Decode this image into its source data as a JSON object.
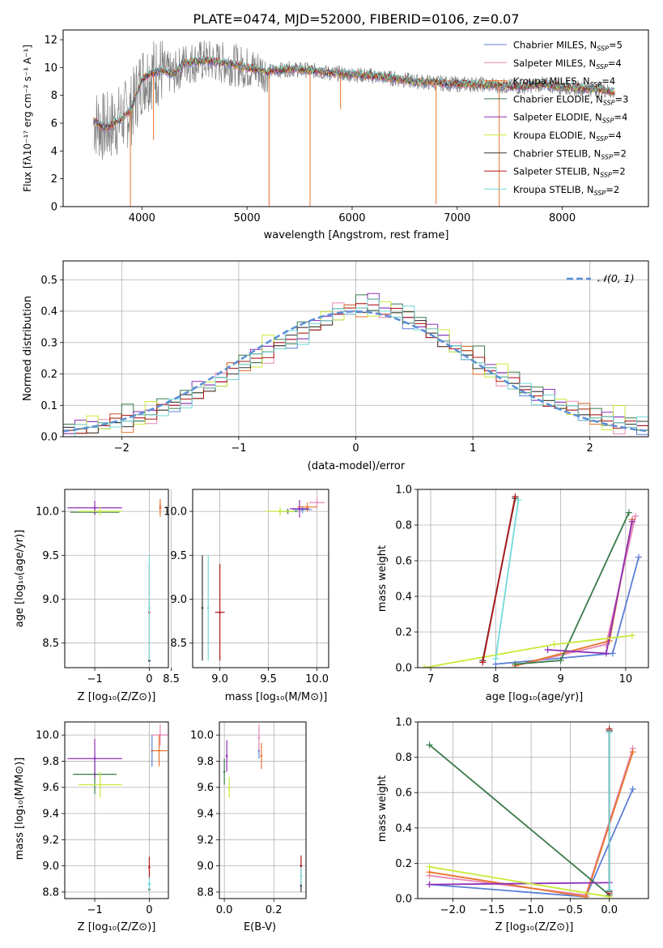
{
  "title": "PLATE=0474, MJD=52000, FIBERID=0106, z=0.07",
  "colors": {
    "chabrier_miles": "#5b7fd6",
    "salpeter_miles": "#e887b8",
    "kroupa_miles": "#e8742a",
    "chabrier_elodie": "#3a7a4a",
    "salpeter_elodie": "#8f2fb8",
    "kroupa_elodie": "#c8ea3a",
    "chabrier_stelib": "#333333",
    "salpeter_stelib": "#b01818",
    "kroupa_stelib": "#72d9d9",
    "data": "#808080",
    "normal_curve": "#5b8fd6"
  },
  "chart_data": [
    {
      "id": "spectrum",
      "type": "line",
      "xlabel": "wavelength [Angstrom, rest frame]",
      "ylabel": "Flux [fλ10⁻¹⁷ erg cm⁻² s⁻¹ A⁻¹]",
      "xlim": [
        3250,
        8820
      ],
      "ylim": [
        0,
        12.7
      ],
      "xticks": [
        "4000",
        "5000",
        "6000",
        "7000",
        "8000"
      ],
      "yticks": [
        "0",
        "2",
        "4",
        "6",
        "8",
        "10",
        "12"
      ],
      "legend_placement": "upper-right",
      "legend": [
        {
          "label": "Chabrier MILES, N",
          "sub": "SSP",
          "suffix": "=5",
          "color_key": "chabrier_miles"
        },
        {
          "label": "Salpeter MILES, N",
          "sub": "SSP",
          "suffix": "=4",
          "color_key": "salpeter_miles"
        },
        {
          "label": "Kroupa MILES, N",
          "sub": "SSP",
          "suffix": "=4",
          "color_key": "kroupa_miles"
        },
        {
          "label": "Chabrier ELODIE, N",
          "sub": "SSP",
          "suffix": "=3",
          "color_key": "chabrier_elodie"
        },
        {
          "label": "Salpeter ELODIE, N",
          "sub": "SSP",
          "suffix": "=4",
          "color_key": "salpeter_elodie"
        },
        {
          "label": "Kroupa ELODIE, N",
          "sub": "SSP",
          "suffix": "=4",
          "color_key": "kroupa_elodie"
        },
        {
          "label": "Chabrier STELIB, N",
          "sub": "SSP",
          "suffix": "=2",
          "color_key": "chabrier_stelib"
        },
        {
          "label": "Salpeter STELIB, N",
          "sub": "SSP",
          "suffix": "=2",
          "color_key": "salpeter_stelib"
        },
        {
          "label": "Kroupa STELIB, N",
          "sub": "SSP",
          "suffix": "=2",
          "color_key": "kroupa_stelib"
        }
      ],
      "continuum_points": [
        [
          3550,
          6.1
        ],
        [
          3650,
          5.6
        ],
        [
          3800,
          6.3
        ],
        [
          3900,
          7.0
        ],
        [
          4000,
          9.2
        ],
        [
          4100,
          9.6
        ],
        [
          4200,
          9.8
        ],
        [
          4300,
          9.5
        ],
        [
          4400,
          10.3
        ],
        [
          4600,
          10.5
        ],
        [
          4800,
          10.3
        ],
        [
          5000,
          10.0
        ],
        [
          5200,
          9.7
        ],
        [
          5400,
          9.9
        ],
        [
          5600,
          9.8
        ],
        [
          5800,
          9.6
        ],
        [
          6000,
          9.5
        ],
        [
          6200,
          9.4
        ],
        [
          6400,
          9.2
        ],
        [
          6600,
          9.0
        ],
        [
          6800,
          8.9
        ],
        [
          7000,
          8.8
        ],
        [
          7200,
          8.8
        ],
        [
          7400,
          8.7
        ],
        [
          7600,
          8.6
        ],
        [
          7800,
          8.8
        ],
        [
          8000,
          8.6
        ],
        [
          8200,
          8.5
        ],
        [
          8400,
          8.4
        ],
        [
          8500,
          8.2
        ]
      ],
      "absorption_spikes": [
        [
          3890,
          0
        ],
        [
          4110,
          4.8
        ],
        [
          5210,
          0
        ],
        [
          5600,
          0
        ],
        [
          5890,
          7.0
        ],
        [
          6800,
          0.2
        ],
        [
          7400,
          0
        ]
      ]
    },
    {
      "id": "residuals",
      "type": "histogram",
      "xlabel": "(data-model)/error",
      "ylabel": "Normed distribution",
      "xlim": [
        -2.5,
        2.5
      ],
      "ylim": [
        0,
        0.56
      ],
      "xticks": [
        "−2",
        "−1",
        "0",
        "1",
        "2"
      ],
      "yticks": [
        "0.0",
        "0.1",
        "0.2",
        "0.3",
        "0.4",
        "0.5"
      ],
      "grid": true,
      "legend_placement": "upper-right",
      "legend": [
        "𝒩(0, 1)"
      ],
      "bin_width": 0.1,
      "bin_start": -2.5,
      "base_values": [
        0.02,
        0.025,
        0.03,
        0.035,
        0.045,
        0.05,
        0.06,
        0.07,
        0.085,
        0.1,
        0.12,
        0.14,
        0.155,
        0.175,
        0.2,
        0.23,
        0.25,
        0.27,
        0.29,
        0.31,
        0.33,
        0.35,
        0.37,
        0.39,
        0.4,
        0.41,
        0.42,
        0.4,
        0.395,
        0.38,
        0.36,
        0.33,
        0.305,
        0.28,
        0.26,
        0.235,
        0.21,
        0.19,
        0.17,
        0.15,
        0.13,
        0.115,
        0.1,
        0.085,
        0.07,
        0.06,
        0.05,
        0.045,
        0.04,
        0.035
      ],
      "series_offsets": {
        "chabrier_miles": [
          -0.01,
          0.0,
          0.01,
          -0.01,
          0.02,
          0.0,
          -0.01,
          0.01,
          0.0,
          -0.02
        ],
        "salpeter_miles": [
          0.01,
          -0.01,
          0.0,
          0.02,
          -0.01,
          0.01,
          0.0,
          -0.02,
          0.01,
          0.0
        ],
        "kroupa_miles": [
          0.0,
          0.01,
          -0.01,
          0.0,
          0.02,
          -0.02,
          0.01,
          0.0,
          -0.01,
          0.01
        ],
        "chabrier_elodie": [
          0.02,
          -0.01,
          0.0,
          0.01,
          0.0,
          0.03,
          -0.01,
          0.0,
          0.02,
          -0.01
        ],
        "salpeter_elodie": [
          -0.01,
          0.02,
          0.01,
          0.0,
          -0.01,
          0.0,
          0.02,
          0.01,
          0.0,
          0.0
        ],
        "kroupa_elodie": [
          0.0,
          0.0,
          0.02,
          -0.01,
          0.01,
          0.0,
          -0.02,
          0.03,
          0.0,
          0.01
        ],
        "chabrier_stelib": [
          0.01,
          0.0,
          -0.01,
          0.01,
          0.0,
          -0.01,
          0.01,
          0.0,
          0.0,
          0.01
        ],
        "salpeter_stelib": [
          0.0,
          -0.01,
          0.0,
          0.0,
          0.01,
          0.01,
          0.0,
          -0.01,
          0.01,
          0.0
        ],
        "kroupa_stelib": [
          -0.02,
          0.01,
          0.0,
          0.01,
          -0.01,
          0.0,
          0.01,
          0.0,
          -0.01,
          0.02
        ]
      },
      "normal_curve": {
        "mean": 0,
        "sigma": 1
      }
    },
    {
      "id": "age-vs-Z",
      "type": "scatter",
      "xlabel": "Z [log₁₀(Z/Z⊙)]",
      "ylabel": "age  [log₁₀(age/yr)]",
      "xlim": [
        -1.55,
        0.35
      ],
      "ylim": [
        8.22,
        10.25
      ],
      "xticks": [
        "−1",
        "0"
      ],
      "yticks": [
        "8.5",
        "9.0",
        "9.5",
        "10.0"
      ],
      "grid": true,
      "points": [
        {
          "series": "chabrier_miles",
          "x": 0.0,
          "y": 8.3,
          "xerr": 0.02,
          "yerr": 0.0
        },
        {
          "series": "salpeter_miles",
          "x": 0.2,
          "y": 10.06,
          "xerr": 0.02,
          "yerr": 0.08
        },
        {
          "series": "kroupa_miles",
          "x": 0.2,
          "y": 10.04,
          "xerr": 0.02,
          "yerr": 0.1
        },
        {
          "series": "chabrier_elodie",
          "x": -1.0,
          "y": 9.99,
          "xerr": 0.45,
          "yerr": 0.03
        },
        {
          "series": "salpeter_elodie",
          "x": -1.0,
          "y": 10.04,
          "xerr": 0.5,
          "yerr": 0.08
        },
        {
          "series": "kroupa_elodie",
          "x": -0.9,
          "y": 10.0,
          "xerr": 0.4,
          "yerr": 0.05
        },
        {
          "series": "chabrier_stelib",
          "x": 0.0,
          "y": 8.3,
          "xerr": 0.0,
          "yerr": 0.0
        },
        {
          "series": "salpeter_stelib",
          "x": 0.0,
          "y": 8.85,
          "xerr": 0.0,
          "yerr": 0.55
        },
        {
          "series": "kroupa_stelib",
          "x": 0.0,
          "y": 8.9,
          "xerr": 0.0,
          "yerr": 0.6
        }
      ]
    },
    {
      "id": "age-vs-mass",
      "type": "scatter",
      "xlabel": "mass [log₁₀(M/M⊙)]",
      "ylabel": "",
      "xlim": [
        8.72,
        10.12
      ],
      "ylim": [
        8.22,
        10.25
      ],
      "xticks": [
        "8.5",
        "9.0",
        "9.5",
        "10.0"
      ],
      "yticks": [
        "8.5",
        "9.0",
        "9.5",
        "10.0"
      ],
      "grid": true,
      "points": [
        {
          "series": "chabrier_miles",
          "x": 9.85,
          "y": 10.02,
          "xerr": 0.1,
          "yerr": 0.04
        },
        {
          "series": "salpeter_miles",
          "x": 10.0,
          "y": 10.1,
          "xerr": 0.08,
          "yerr": 0.06
        },
        {
          "series": "kroupa_miles",
          "x": 9.9,
          "y": 10.05,
          "xerr": 0.1,
          "yerr": 0.05
        },
        {
          "series": "chabrier_elodie",
          "x": 9.7,
          "y": 10.0,
          "xerr": 0.1,
          "yerr": 0.03
        },
        {
          "series": "salpeter_elodie",
          "x": 9.82,
          "y": 10.03,
          "xerr": 0.1,
          "yerr": 0.1
        },
        {
          "series": "kroupa_elodie",
          "x": 9.62,
          "y": 10.0,
          "xerr": 0.15,
          "yerr": 0.05
        },
        {
          "series": "chabrier_stelib",
          "x": 8.82,
          "y": 8.9,
          "xerr": 0.0,
          "yerr": 0.6
        },
        {
          "series": "salpeter_stelib",
          "x": 9.0,
          "y": 8.85,
          "xerr": 0.05,
          "yerr": 0.55
        },
        {
          "series": "kroupa_stelib",
          "x": 8.88,
          "y": 8.9,
          "xerr": 0.0,
          "yerr": 0.6
        }
      ]
    },
    {
      "id": "weight-vs-age",
      "type": "line",
      "xlabel": "age  [log₁₀(age/yr)]",
      "ylabel": "mass weight",
      "xlim": [
        6.8,
        10.35
      ],
      "ylim": [
        0,
        1.0
      ],
      "xticks": [
        "7",
        "8",
        "9",
        "10"
      ],
      "yticks": [
        "0.0",
        "0.2",
        "0.4",
        "0.6",
        "0.8",
        "1.0"
      ],
      "grid": true,
      "series": [
        {
          "name_key": "chabrier_miles",
          "x": [
            8.0,
            9.8,
            10.2
          ],
          "y": [
            0.02,
            0.08,
            0.62
          ]
        },
        {
          "name_key": "salpeter_miles",
          "x": [
            8.3,
            9.7,
            10.15
          ],
          "y": [
            0.01,
            0.13,
            0.85
          ]
        },
        {
          "name_key": "kroupa_miles",
          "x": [
            8.3,
            9.75,
            10.1
          ],
          "y": [
            0.01,
            0.15,
            0.83
          ]
        },
        {
          "name_key": "chabrier_elodie",
          "x": [
            8.3,
            9.0,
            10.05
          ],
          "y": [
            0.02,
            0.04,
            0.87
          ]
        },
        {
          "name_key": "salpeter_elodie",
          "x": [
            8.8,
            9.7,
            10.1
          ],
          "y": [
            0.1,
            0.08,
            0.82
          ]
        },
        {
          "name_key": "kroupa_elodie",
          "x": [
            6.9,
            8.9,
            10.1
          ],
          "y": [
            0.0,
            0.13,
            0.18
          ]
        },
        {
          "name_key": "chabrier_stelib",
          "x": [
            7.8,
            8.3
          ],
          "y": [
            0.04,
            0.95
          ]
        },
        {
          "name_key": "salpeter_stelib",
          "x": [
            7.8,
            8.3
          ],
          "y": [
            0.03,
            0.96
          ]
        },
        {
          "name_key": "kroupa_stelib",
          "x": [
            8.0,
            8.35
          ],
          "y": [
            0.05,
            0.94
          ]
        }
      ]
    },
    {
      "id": "mass-vs-Z",
      "type": "scatter",
      "xlabel": "Z [log₁₀(Z/Z⊙)]",
      "ylabel": "mass [log₁₀(M/M⊙)]",
      "xlim": [
        -1.55,
        0.35
      ],
      "ylim": [
        8.75,
        10.1
      ],
      "xticks": [
        "−1",
        "0"
      ],
      "yticks": [
        "8.8",
        "9.0",
        "9.2",
        "9.4",
        "9.6",
        "9.8",
        "10.0"
      ],
      "grid": true,
      "points": [
        {
          "series": "chabrier_miles",
          "x": 0.05,
          "y": 9.88,
          "xerr": 0.02,
          "yerr": 0.12
        },
        {
          "series": "salpeter_miles",
          "x": 0.2,
          "y": 10.0,
          "xerr": 0.15,
          "yerr": 0.08
        },
        {
          "series": "kroupa_miles",
          "x": 0.18,
          "y": 9.88,
          "xerr": 0.15,
          "yerr": 0.12
        },
        {
          "series": "chabrier_elodie",
          "x": -1.0,
          "y": 9.7,
          "xerr": 0.4,
          "yerr": 0.15
        },
        {
          "series": "salpeter_elodie",
          "x": -1.0,
          "y": 9.82,
          "xerr": 0.5,
          "yerr": 0.15
        },
        {
          "series": "kroupa_elodie",
          "x": -0.9,
          "y": 9.62,
          "xerr": 0.4,
          "yerr": 0.1
        },
        {
          "series": "chabrier_stelib",
          "x": 0.0,
          "y": 8.82,
          "xerr": 0.0,
          "yerr": 0.0
        },
        {
          "series": "salpeter_stelib",
          "x": 0.0,
          "y": 8.99,
          "xerr": 0.0,
          "yerr": 0.08
        },
        {
          "series": "kroupa_stelib",
          "x": 0.0,
          "y": 8.86,
          "xerr": 0.03,
          "yerr": 0.05
        }
      ]
    },
    {
      "id": "mass-vs-ebv",
      "type": "scatter",
      "xlabel": "E(B-V)",
      "ylabel": "",
      "xlim": [
        -0.02,
        0.33
      ],
      "ylim": [
        8.75,
        10.1
      ],
      "xticks": [
        "0.0",
        "0.2"
      ],
      "yticks": [
        "8.8",
        "9.0",
        "9.2",
        "9.4",
        "9.6",
        "9.8",
        "10.0"
      ],
      "grid": true,
      "points": [
        {
          "series": "chabrier_miles",
          "x": 0.14,
          "y": 9.88,
          "xerr": 0.0,
          "yerr": 0.06
        },
        {
          "series": "salpeter_miles",
          "x": 0.14,
          "y": 9.98,
          "xerr": 0.0,
          "yerr": 0.1
        },
        {
          "series": "kroupa_miles",
          "x": 0.15,
          "y": 9.84,
          "xerr": 0.0,
          "yerr": 0.1
        },
        {
          "series": "chabrier_elodie",
          "x": 0.0,
          "y": 9.72,
          "xerr": 0.0,
          "yerr": 0.1
        },
        {
          "series": "salpeter_elodie",
          "x": 0.01,
          "y": 9.84,
          "xerr": 0.0,
          "yerr": 0.12
        },
        {
          "series": "kroupa_elodie",
          "x": 0.02,
          "y": 9.6,
          "xerr": 0.0,
          "yerr": 0.08
        },
        {
          "series": "chabrier_stelib",
          "x": 0.31,
          "y": 8.85,
          "xerr": 0.0,
          "yerr": 0.05
        },
        {
          "series": "salpeter_stelib",
          "x": 0.31,
          "y": 9.0,
          "xerr": 0.0,
          "yerr": 0.08
        },
        {
          "series": "kroupa_stelib",
          "x": 0.31,
          "y": 8.92,
          "xerr": 0.0,
          "yerr": 0.07
        }
      ]
    },
    {
      "id": "weight-vs-Z",
      "type": "line",
      "xlabel": "Z [log₁₀(Z/Z⊙)]",
      "ylabel": "mass weight",
      "xlim": [
        -2.45,
        0.5
      ],
      "ylim": [
        0,
        1.0
      ],
      "xticks": [
        "−2.0",
        "−1.5",
        "−1.0",
        "−0.5",
        "0.0"
      ],
      "yticks": [
        "0.0",
        "0.2",
        "0.4",
        "0.6",
        "0.8",
        "1.0"
      ],
      "grid": true,
      "series": [
        {
          "name_key": "chabrier_miles",
          "x": [
            -2.3,
            -0.3,
            0.3
          ],
          "y": [
            0.08,
            0.01,
            0.62
          ]
        },
        {
          "name_key": "salpeter_miles",
          "x": [
            -2.3,
            -0.3,
            0.3
          ],
          "y": [
            0.13,
            0.02,
            0.85
          ]
        },
        {
          "name_key": "kroupa_miles",
          "x": [
            -2.3,
            -0.3,
            0.3
          ],
          "y": [
            0.15,
            0.01,
            0.83
          ]
        },
        {
          "name_key": "chabrier_elodie",
          "x": [
            -2.3,
            0.0
          ],
          "y": [
            0.87,
            0.02
          ]
        },
        {
          "name_key": "salpeter_elodie",
          "x": [
            -2.3,
            0.0
          ],
          "y": [
            0.08,
            0.09
          ]
        },
        {
          "name_key": "kroupa_elodie",
          "x": [
            -2.3,
            0.0
          ],
          "y": [
            0.18,
            0.01
          ]
        },
        {
          "name_key": "chabrier_stelib",
          "x": [
            0.0,
            0.0
          ],
          "y": [
            0.04,
            0.95
          ]
        },
        {
          "name_key": "salpeter_stelib",
          "x": [
            0.0,
            0.0
          ],
          "y": [
            0.03,
            0.96
          ]
        },
        {
          "name_key": "kroupa_stelib",
          "x": [
            0.0,
            0.0
          ],
          "y": [
            0.05,
            0.94
          ]
        }
      ]
    }
  ]
}
